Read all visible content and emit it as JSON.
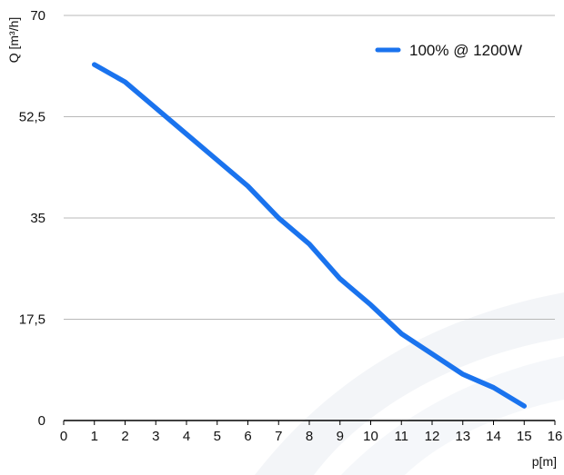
{
  "chart_data": {
    "type": "line",
    "xlabel": "p[m]",
    "ylabel": "Q [m³/h]",
    "x_ticks": [
      "0",
      "1",
      "2",
      "3",
      "4",
      "5",
      "6",
      "7",
      "8",
      "9",
      "10",
      "11",
      "12",
      "13",
      "14",
      "15",
      "16"
    ],
    "y_ticks": [
      "0",
      "17,5",
      "35",
      "52,5",
      "70"
    ],
    "xlim": [
      0,
      16
    ],
    "ylim": [
      0,
      70
    ],
    "grid": "horizontal",
    "legend_position": "top-right",
    "series": [
      {
        "name": "100% @ 1200W",
        "color": "#1a73ee",
        "x": [
          1,
          2,
          3,
          4,
          5,
          6,
          7,
          8,
          9,
          10,
          11,
          12,
          13,
          14,
          15
        ],
        "y": [
          61.5,
          58.5,
          54,
          49.5,
          45,
          40.5,
          35,
          30.5,
          24.5,
          20,
          15,
          11.5,
          8,
          5.7,
          2.5
        ]
      }
    ]
  }
}
